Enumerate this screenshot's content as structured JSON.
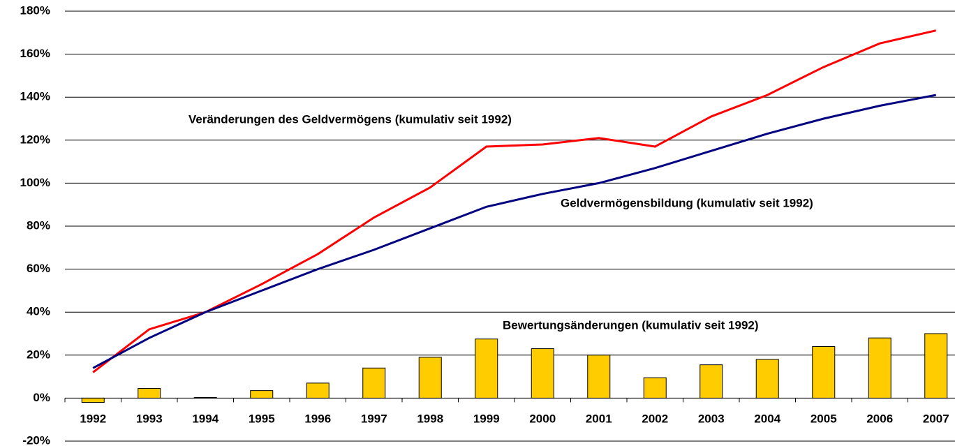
{
  "chart_data": {
    "type": "line",
    "categories": [
      "1992",
      "1993",
      "1994",
      "1995",
      "1996",
      "1997",
      "1998",
      "1999",
      "2000",
      "2001",
      "2002",
      "2003",
      "2004",
      "2005",
      "2006",
      "2007"
    ],
    "series": [
      {
        "name": "Veränderungen des Geldvermögens (kumulativ seit 1992)",
        "type": "line",
        "color": "#ff0000",
        "values": [
          12,
          32,
          40,
          53,
          67,
          84,
          98,
          117,
          118,
          121,
          117,
          131,
          141,
          154,
          165,
          171
        ]
      },
      {
        "name": "Geldvermögensbildung (kumulativ seit 1992)",
        "type": "line",
        "color": "#000080",
        "values": [
          14,
          28,
          40,
          50,
          60,
          69,
          79,
          89,
          95,
          100,
          107,
          115,
          123,
          130,
          136,
          141
        ]
      },
      {
        "name": "Bewertungsänderungen (kumulativ seit 1992)",
        "type": "bar",
        "color": "#ffcc00",
        "values": [
          -2,
          4.5,
          0.3,
          3.5,
          7,
          14,
          19,
          27.5,
          23,
          20,
          9.5,
          15.5,
          18,
          24,
          28,
          30
        ]
      }
    ],
    "ylim": [
      -20,
      180
    ],
    "yticks": [
      {
        "value": -20,
        "label": "-20%"
      },
      {
        "value": 0,
        "label": "0%"
      },
      {
        "value": 20,
        "label": "20%"
      },
      {
        "value": 40,
        "label": "40%"
      },
      {
        "value": 60,
        "label": "60%"
      },
      {
        "value": 80,
        "label": "80%"
      },
      {
        "value": 100,
        "label": "100%"
      },
      {
        "value": 120,
        "label": "120%"
      },
      {
        "value": 140,
        "label": "140%"
      },
      {
        "value": 160,
        "label": "160%"
      },
      {
        "value": 180,
        "label": "180%"
      }
    ],
    "grid": true
  }
}
